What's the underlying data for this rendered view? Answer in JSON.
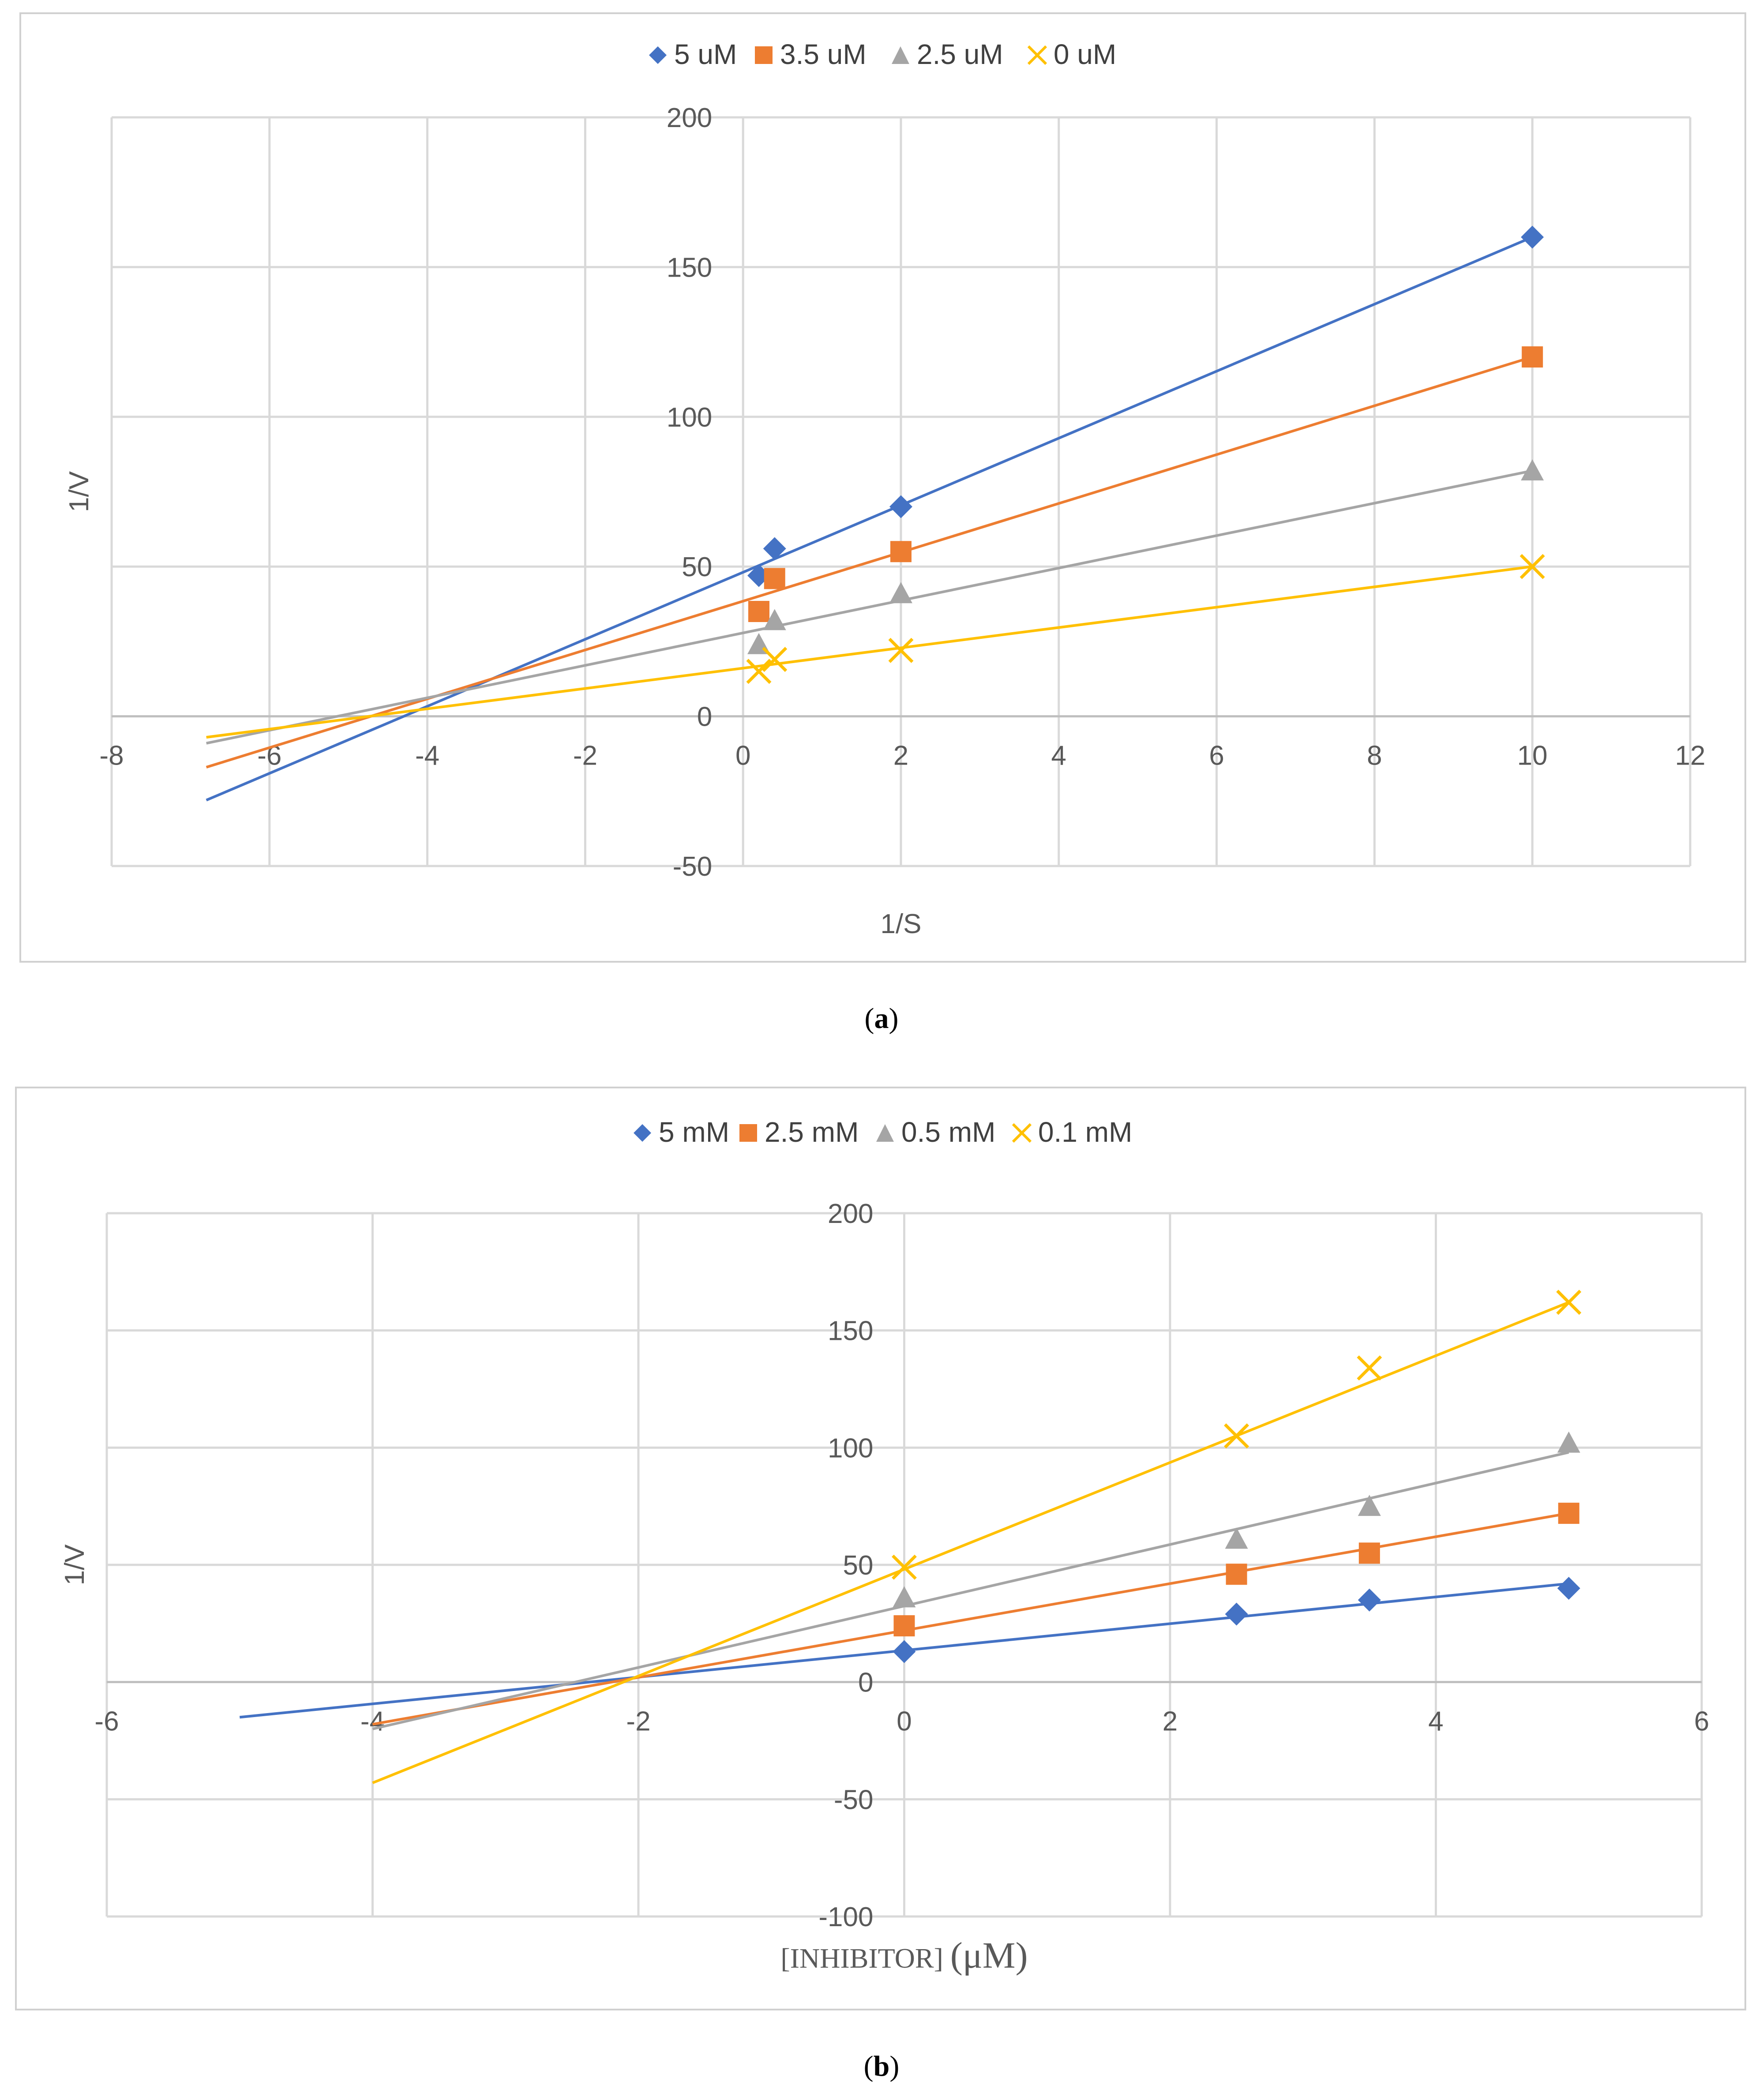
{
  "chart_data": [
    {
      "id": "a",
      "type": "scatter",
      "xlabel": "1/S",
      "ylabel": "1/V",
      "xlim": [
        -8,
        12
      ],
      "ylim": [
        -50,
        200
      ],
      "xticks": [
        -8,
        -6,
        -4,
        -2,
        0,
        2,
        4,
        6,
        8,
        10,
        12
      ],
      "yticks": [
        -50,
        0,
        50,
        100,
        150,
        200
      ],
      "legend_position": "top",
      "series": [
        {
          "name": "5 uM",
          "color": "#4472C4",
          "marker": "diamond",
          "x": [
            0.2,
            0.4,
            2,
            10
          ],
          "y": [
            47,
            56,
            70,
            160
          ],
          "fit_x": [
            -6.8,
            10
          ],
          "fit_y": [
            -28,
            160
          ]
        },
        {
          "name": "3.5 uM",
          "color": "#ED7D31",
          "marker": "square",
          "x": [
            0.2,
            0.4,
            2,
            10
          ],
          "y": [
            35,
            46,
            55,
            120
          ],
          "fit_x": [
            -6.8,
            10
          ],
          "fit_y": [
            -17,
            120
          ]
        },
        {
          "name": "2.5 uM",
          "color": "#A5A5A5",
          "marker": "triangle",
          "x": [
            0.2,
            0.4,
            2,
            10
          ],
          "y": [
            24,
            32,
            41,
            82
          ],
          "fit_x": [
            -6.8,
            10
          ],
          "fit_y": [
            -9,
            82
          ]
        },
        {
          "name": "0 uM",
          "color": "#FFC000",
          "marker": "x",
          "x": [
            0.2,
            0.4,
            2,
            10
          ],
          "y": [
            15,
            19,
            22,
            50
          ],
          "fit_x": [
            -6.8,
            10
          ],
          "fit_y": [
            -7,
            50
          ]
        }
      ]
    },
    {
      "id": "b",
      "type": "scatter",
      "xlabel": "[INHIBITOR]",
      "xlabel_unit": "(μM)",
      "ylabel": "1/V",
      "xlim": [
        -6,
        6
      ],
      "ylim": [
        -100,
        200
      ],
      "xticks": [
        -6,
        -4,
        -2,
        0,
        2,
        4,
        6
      ],
      "yticks": [
        -100,
        -50,
        0,
        50,
        100,
        150,
        200
      ],
      "legend_position": "top",
      "series": [
        {
          "name": "5 mM",
          "color": "#4472C4",
          "marker": "diamond",
          "x": [
            0,
            2.5,
            3.5,
            5
          ],
          "y": [
            13,
            29,
            35,
            40
          ],
          "fit_x": [
            -5,
            5
          ],
          "fit_y": [
            -15,
            42
          ]
        },
        {
          "name": "2.5 mM",
          "color": "#ED7D31",
          "marker": "square",
          "x": [
            0,
            2.5,
            3.5,
            5
          ],
          "y": [
            24,
            46,
            55,
            72
          ],
          "fit_x": [
            -4,
            5
          ],
          "fit_y": [
            -18,
            72
          ]
        },
        {
          "name": "0.5 mM",
          "color": "#A5A5A5",
          "marker": "triangle",
          "x": [
            0,
            2.5,
            3.5,
            5
          ],
          "y": [
            36,
            61,
            75,
            102
          ],
          "fit_x": [
            -4,
            5
          ],
          "fit_y": [
            -20,
            98
          ]
        },
        {
          "name": "0.1 mM",
          "color": "#FFC000",
          "marker": "x",
          "x": [
            0,
            2.5,
            3.5,
            5
          ],
          "y": [
            49,
            105,
            134,
            162
          ],
          "fit_x": [
            -4,
            5
          ],
          "fit_y": [
            -43,
            162
          ]
        }
      ]
    }
  ],
  "captions": {
    "a": "(a)",
    "b": "(b)"
  }
}
